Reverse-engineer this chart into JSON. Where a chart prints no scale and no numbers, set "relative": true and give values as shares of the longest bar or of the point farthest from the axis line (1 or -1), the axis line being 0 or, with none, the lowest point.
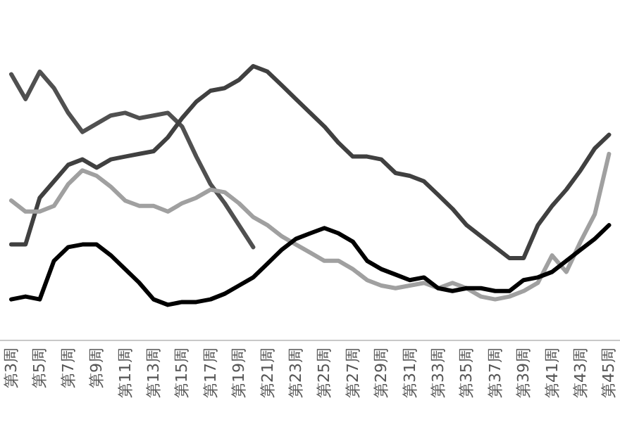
{
  "chart_data": {
    "type": "line",
    "relative": true,
    "categories": [
      "第3周",
      null,
      "第5周",
      null,
      "第7周",
      null,
      "第9周",
      null,
      "第11周",
      null,
      "第13周",
      null,
      "第15周",
      null,
      "第17周",
      null,
      "第19周",
      null,
      "第21周",
      null,
      "第23周",
      null,
      "第25周",
      null,
      "第27周",
      null,
      "第29周",
      null,
      "第31周",
      null,
      "第33周",
      null,
      "第35周",
      null,
      "第37周",
      null,
      "第39周",
      null,
      "第41周",
      null,
      "第43周",
      null,
      "第45周"
    ],
    "series": [
      {
        "color": "#505050",
        "values": [
          0.97,
          0.88,
          0.98,
          0.92,
          0.83,
          0.76,
          0.79,
          0.82,
          0.83,
          0.81,
          0.82,
          0.83,
          0.78,
          0.67,
          0.57,
          0.5,
          0.42,
          0.34,
          null,
          null,
          null,
          null,
          null,
          null,
          null,
          null,
          null,
          null,
          null,
          null,
          null,
          null,
          null,
          null,
          null,
          null,
          null,
          null,
          null,
          null,
          null,
          null,
          null
        ]
      },
      {
        "color": "#404040",
        "values": [
          0.35,
          0.35,
          0.52,
          0.58,
          0.64,
          0.66,
          0.63,
          0.66,
          0.67,
          0.68,
          0.69,
          0.74,
          0.81,
          0.87,
          0.91,
          0.92,
          0.95,
          1,
          0.98,
          0.93,
          0.88,
          0.83,
          0.78,
          0.72,
          0.67,
          0.67,
          0.66,
          0.61,
          0.6,
          0.58,
          0.53,
          0.48,
          0.42,
          0.38,
          0.34,
          0.3,
          0.3,
          0.42,
          0.49,
          0.55,
          0.62,
          0.7,
          0.75
        ]
      },
      {
        "color": "#a0a0a0",
        "values": [
          0.51,
          0.47,
          0.47,
          0.49,
          0.57,
          0.62,
          0.6,
          0.56,
          0.51,
          0.49,
          0.49,
          0.47,
          0.5,
          0.52,
          0.55,
          0.54,
          0.5,
          0.45,
          0.42,
          0.38,
          0.35,
          0.32,
          0.29,
          0.29,
          0.26,
          0.22,
          0.2,
          0.19,
          0.2,
          0.21,
          0.19,
          0.21,
          0.19,
          0.16,
          0.15,
          0.16,
          0.18,
          0.21,
          0.31,
          0.25,
          0.36,
          0.46,
          0.68
        ]
      },
      {
        "color": "#000000",
        "values": [
          0.15,
          0.16,
          0.15,
          0.29,
          0.34,
          0.35,
          0.35,
          0.31,
          0.26,
          0.21,
          0.15,
          0.13,
          0.14,
          0.14,
          0.15,
          0.17,
          0.2,
          0.23,
          0.28,
          0.33,
          0.37,
          0.39,
          0.41,
          0.39,
          0.36,
          0.29,
          0.26,
          0.24,
          0.22,
          0.23,
          0.19,
          0.18,
          0.19,
          0.19,
          0.18,
          0.18,
          0.22,
          0.23,
          0.25,
          0.29,
          0.33,
          0.37,
          0.42
        ]
      }
    ]
  }
}
